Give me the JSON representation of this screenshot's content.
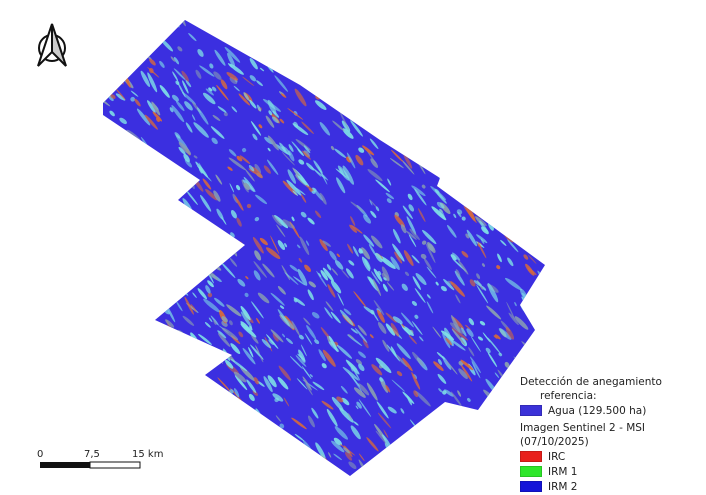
{
  "north_arrow": {
    "icon": "north-arrow-icon"
  },
  "legend": {
    "title_line1": "Detección de anegamiento",
    "title_line2": "referencia:",
    "reference_items": [
      {
        "label": "Agua (129.500 ha)",
        "color": "#3b32d8"
      }
    ],
    "image_title": "Imagen Sentinel 2 - MSI  (07/10/2025)",
    "image_items": [
      {
        "label": "IRC",
        "color": "#e8201c"
      },
      {
        "label": "IRM 1",
        "color": "#2ee62a"
      },
      {
        "label": "IRM 2",
        "color": "#1414d8"
      }
    ]
  },
  "scale_bar": {
    "labels": [
      "0",
      "7,5",
      "15 km"
    ]
  },
  "map_colors": {
    "water": "#3b2fe0",
    "cyan": "#7fe0e6",
    "orange": "#d86a3a",
    "grey": "#8aa0b0"
  }
}
